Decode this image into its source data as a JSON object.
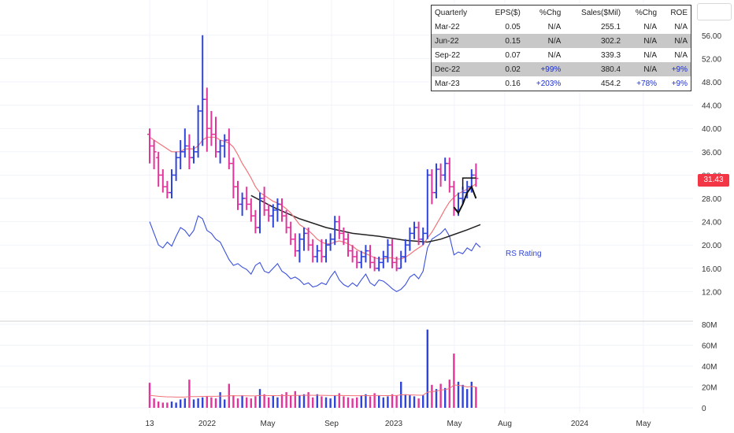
{
  "price_badge": "31.43",
  "fundamentals": {
    "headers": [
      "Quarterly",
      "EPS($)",
      "%Chg",
      "Sales($Mil)",
      "%Chg",
      "ROE"
    ],
    "rows": [
      {
        "cells": [
          "Mar-22",
          "0.05",
          "N/A",
          "255.1",
          "N/A",
          "N/A"
        ],
        "shaded": false
      },
      {
        "cells": [
          "Jun-22",
          "0.15",
          "N/A",
          "302.2",
          "N/A",
          "N/A"
        ],
        "shaded": true
      },
      {
        "cells": [
          "Sep-22",
          "0.07",
          "N/A",
          "339.3",
          "N/A",
          "N/A"
        ],
        "shaded": false
      },
      {
        "cells": [
          "Dec-22",
          "0.02",
          "+99%",
          "380.4",
          "N/A",
          "+9%"
        ],
        "shaded": true
      },
      {
        "cells": [
          "Mar-23",
          "0.16",
          "+203%",
          "454.2",
          "+78%",
          "+9%"
        ],
        "shaded": false
      }
    ]
  },
  "chart_data": [
    {
      "type": "bar",
      "subtype": "ohlc-price",
      "x_ticks": [
        "13",
        "2022",
        "May",
        "Sep",
        "2023",
        "May",
        "Aug",
        "2024",
        "May"
      ],
      "y_ticks": [
        "56.00",
        "52.00",
        "48.00",
        "44.00",
        "40.00",
        "36.00",
        "32.00",
        "28.00",
        "24.00",
        "20.00",
        "16.00",
        "12.00"
      ],
      "ylim": [
        8,
        58
      ],
      "colors": {
        "up": "#2f44d8",
        "down": "#e0359b",
        "ma_short": "#f0737a",
        "ma_long": "#222222",
        "rs": "#3a4fdc"
      },
      "series_labels": {
        "rs": "RS Rating"
      },
      "price_ohlc": [
        [
          39,
          40,
          34,
          37
        ],
        [
          37,
          38,
          33,
          36
        ],
        [
          35,
          36,
          30,
          32
        ],
        [
          32,
          33,
          29,
          30
        ],
        [
          30,
          31,
          28,
          29
        ],
        [
          29,
          33,
          28,
          32
        ],
        [
          32,
          36,
          31,
          35
        ],
        [
          35,
          38,
          33,
          36
        ],
        [
          36,
          40,
          35,
          37
        ],
        [
          37,
          39,
          33,
          35
        ],
        [
          35,
          37,
          34,
          36
        ],
        [
          36,
          44,
          35,
          43
        ],
        [
          43,
          56,
          37,
          45
        ],
        [
          45,
          47,
          36,
          40
        ],
        [
          40,
          43,
          37,
          39
        ],
        [
          39,
          42,
          35,
          36
        ],
        [
          36,
          38,
          34,
          37
        ],
        [
          37,
          39,
          35,
          38
        ],
        [
          38,
          40,
          33,
          34
        ],
        [
          34,
          35,
          28,
          30
        ],
        [
          30,
          31,
          26,
          27
        ],
        [
          27,
          29,
          25,
          28
        ],
        [
          28,
          30,
          26,
          27
        ],
        [
          27,
          28,
          24,
          25
        ],
        [
          25,
          26,
          22,
          23
        ],
        [
          23,
          29,
          22,
          28
        ],
        [
          28,
          30,
          25,
          26
        ],
        [
          26,
          27,
          24,
          25
        ],
        [
          25,
          27,
          23,
          26
        ],
        [
          26,
          28,
          24,
          27
        ],
        [
          27,
          28,
          24,
          25
        ],
        [
          25,
          26,
          22,
          23
        ],
        [
          23,
          24,
          20,
          21
        ],
        [
          21,
          22,
          18,
          19
        ],
        [
          19,
          22,
          17,
          21
        ],
        [
          21,
          23,
          19,
          22
        ],
        [
          22,
          23,
          19,
          20
        ],
        [
          20,
          21,
          17,
          18
        ],
        [
          18,
          20,
          17,
          19
        ],
        [
          19,
          21,
          17,
          18
        ],
        [
          18,
          21,
          17,
          20
        ],
        [
          20,
          22,
          19,
          21
        ],
        [
          21,
          25,
          20,
          24
        ],
        [
          24,
          25,
          21,
          22
        ],
        [
          22,
          23,
          20,
          21
        ],
        [
          21,
          22,
          18,
          19
        ],
        [
          19,
          20,
          17,
          18
        ],
        [
          18,
          19,
          16,
          17
        ],
        [
          17,
          19,
          16,
          18
        ],
        [
          18,
          20,
          17,
          19
        ],
        [
          19,
          20,
          16,
          17
        ],
        [
          17,
          18,
          15.5,
          16
        ],
        [
          16,
          18,
          15.5,
          17
        ],
        [
          17,
          19,
          16,
          18
        ],
        [
          18,
          21,
          17,
          20
        ],
        [
          20,
          21,
          16,
          17
        ],
        [
          17,
          18,
          15.5,
          16
        ],
        [
          16,
          19,
          16,
          18
        ],
        [
          18,
          21,
          17,
          20
        ],
        [
          20,
          23,
          19,
          22
        ],
        [
          22,
          24,
          21,
          23
        ],
        [
          23,
          24,
          20,
          21
        ],
        [
          21,
          23,
          20,
          22
        ],
        [
          22,
          33,
          21,
          32
        ],
        [
          32,
          33,
          27,
          29
        ],
        [
          29,
          34,
          28,
          33
        ],
        [
          33,
          34,
          30,
          32
        ],
        [
          32,
          35,
          31,
          34
        ],
        [
          34,
          35,
          29,
          30
        ],
        [
          30,
          31,
          25,
          26
        ],
        [
          26,
          29,
          25,
          28
        ],
        [
          28,
          30,
          27,
          29
        ],
        [
          29,
          31,
          28,
          30
        ],
        [
          30,
          33,
          29,
          32
        ],
        [
          32,
          34,
          30,
          31.43
        ]
      ],
      "ma_short": [
        38.5,
        38,
        37.5,
        37,
        36.5,
        36,
        36,
        36,
        36.5,
        36.5,
        36.5,
        37,
        38,
        38.5,
        38.5,
        38.5,
        38,
        37.8,
        37.5,
        36.8,
        35.5,
        34,
        32.8,
        31.5,
        30,
        29,
        28.5,
        28,
        27.5,
        27.2,
        26.8,
        26.2,
        25.5,
        24.5,
        23.5,
        23,
        22.5,
        21.8,
        21,
        20.5,
        20.2,
        20.2,
        20.5,
        20.7,
        20.5,
        20.2,
        19.8,
        19.2,
        18.8,
        18.5,
        18.2,
        17.8,
        17.6,
        17.6,
        17.8,
        17.8,
        17.6,
        17.6,
        17.9,
        18.4,
        19,
        19.5,
        20,
        21.2,
        22.2,
        23.5,
        24.8,
        26.2,
        27.4,
        28.2,
        28.8,
        29.2,
        29.6,
        30,
        30.5
      ],
      "ma_long": [
        [
          23,
          28.5
        ],
        [
          28,
          26.5
        ],
        [
          34,
          24.5
        ],
        [
          40,
          23
        ],
        [
          46,
          22
        ],
        [
          52,
          21.5
        ],
        [
          58,
          20.8
        ],
        [
          63,
          20.5
        ],
        [
          66,
          21
        ],
        [
          69,
          21.8
        ],
        [
          72,
          22.6
        ],
        [
          75,
          23.5
        ]
      ],
      "rs_line": [
        24,
        22,
        20,
        19.5,
        20.5,
        19.8,
        21.5,
        23,
        22.5,
        21.5,
        22.5,
        25,
        24.5,
        22.5,
        22,
        21,
        20.5,
        19,
        17.5,
        16.5,
        16.8,
        16.2,
        15.8,
        15,
        16.5,
        17,
        15.5,
        15.2,
        16,
        16.8,
        15.5,
        15,
        14.2,
        14.5,
        14,
        13.2,
        13.5,
        12.8,
        13,
        13.5,
        13.2,
        14.5,
        15.5,
        14,
        13.2,
        12.8,
        13.5,
        12.9,
        14,
        15,
        13.5,
        13,
        14,
        13.8,
        13.2,
        12.5,
        12,
        12.4,
        13.2,
        14.5,
        15,
        14.2,
        15.5,
        19.5,
        21,
        21.5,
        22,
        22.8,
        21.5,
        18.3,
        18.8,
        18.5,
        19.5,
        19,
        20.3,
        19.6
      ]
    },
    {
      "type": "bar",
      "subtype": "volume",
      "y_ticks": [
        "80M",
        "60M",
        "40M",
        "20M",
        "0"
      ],
      "ylim": [
        0,
        80
      ],
      "volume": [
        24,
        9,
        6,
        5,
        5,
        6,
        5,
        8,
        9,
        27,
        8,
        9,
        10,
        11,
        10,
        9,
        15,
        8,
        23,
        12,
        9,
        12,
        10,
        9,
        11,
        18,
        13,
        10,
        12,
        10,
        13,
        15,
        12,
        16,
        12,
        13,
        15,
        10,
        13,
        11,
        10,
        9,
        12,
        14,
        11,
        10,
        9,
        10,
        12,
        13,
        11,
        14,
        12,
        10,
        11,
        13,
        12,
        25,
        13,
        12,
        11,
        9,
        12,
        75,
        22,
        18,
        23,
        19,
        27,
        52,
        25,
        22,
        18,
        25,
        20
      ],
      "volume_ma": [
        12,
        11.5,
        11,
        10.8,
        10.5,
        10.5,
        10.3,
        10.3,
        10.3,
        10.8,
        10.8,
        10.8,
        10.9,
        11,
        11,
        11,
        11.2,
        11.2,
        11.5,
        11.6,
        11.5,
        11.5,
        11.5,
        11.4,
        11.5,
        11.8,
        11.8,
        11.7,
        11.7,
        11.6,
        11.7,
        11.8,
        11.8,
        11.9,
        11.9,
        12,
        12.1,
        12,
        12,
        12,
        11.9,
        11.8,
        11.8,
        11.9,
        11.8,
        11.7,
        11.6,
        11.6,
        11.6,
        11.7,
        11.7,
        11.8,
        11.8,
        11.7,
        11.7,
        11.8,
        11.8,
        12.5,
        12.5,
        12.4,
        12.3,
        12.1,
        12.1,
        15,
        15.5,
        16,
        17,
        17.5,
        18.5,
        22,
        21.5,
        21,
        20,
        20.5,
        20
      ]
    }
  ]
}
